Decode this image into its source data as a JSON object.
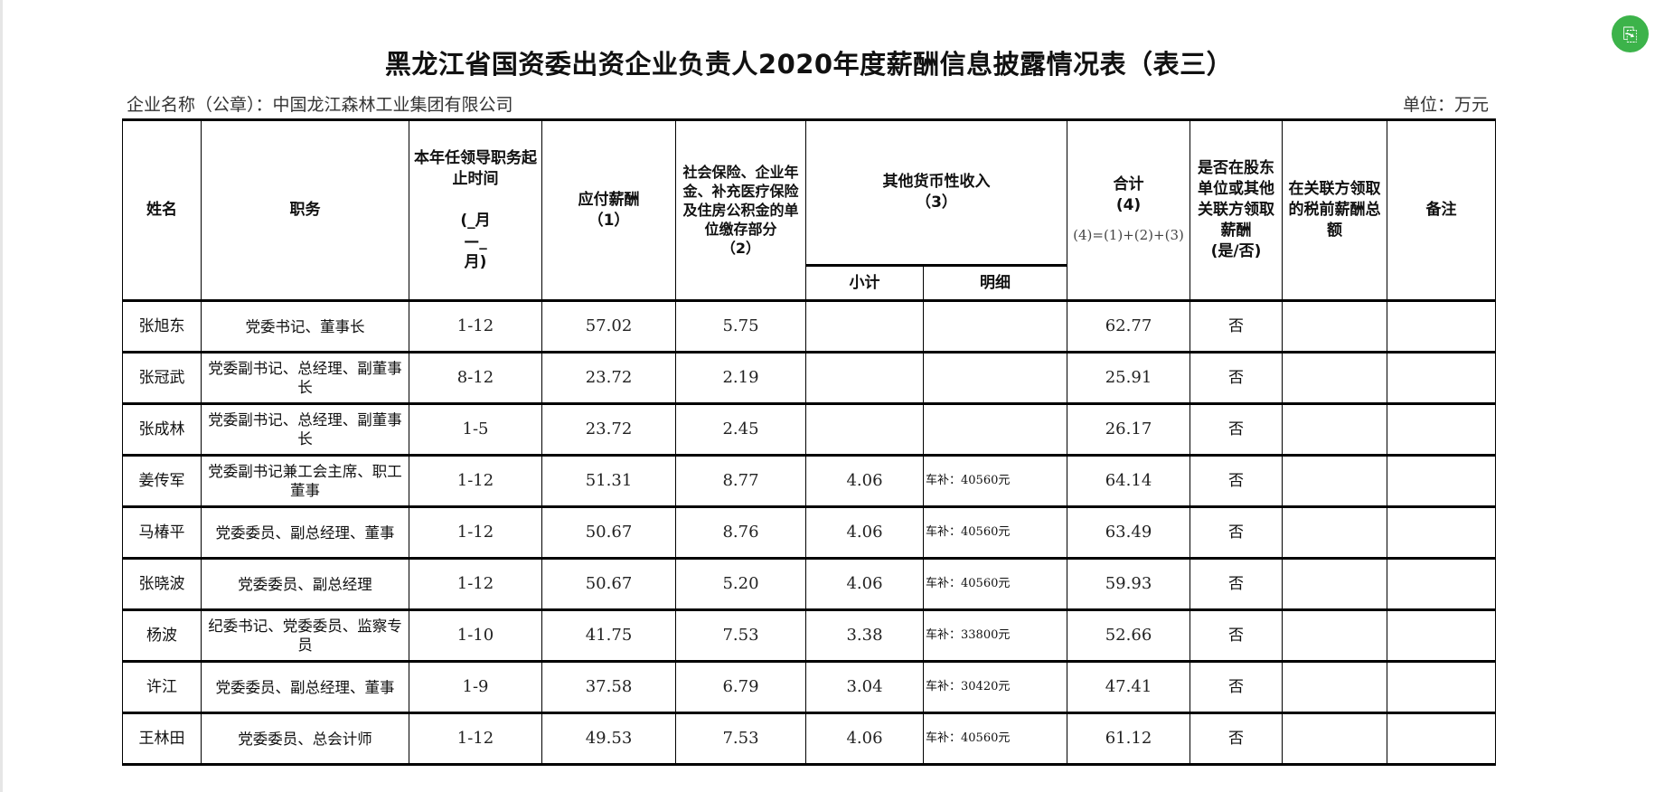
{
  "title": "黑龙江省国资委出资企业负责人2020年度薪酬信息披露情况表（表三）",
  "company": "企业名称（公章）：中国龙江森林工业集团有限公司",
  "unit": "单位：万元",
  "badge_icon": "document-share-icon",
  "accent_color": "#3cb34a",
  "headers": {
    "name": "姓名",
    "position": "职务",
    "term": "本年任领导职务起止时间",
    "term_format": "(_月—_月)",
    "salary": "应付薪酬",
    "salary_no": "（1）",
    "insurance": "社会保险、企业年金、补充医疗保险及住房公积金的单位缴存部分",
    "insurance_no": "（2）",
    "other": "其他货币性收入",
    "other_no": "（3）",
    "subtotal": "小计",
    "detail": "明细",
    "total": "合计",
    "total_no": "(4)",
    "total_formula": "(4)=(1)+(2)+(3)",
    "other_unit": "是否在股东单位或其他关联方领取薪酬",
    "other_unit_yn": "(是/否)",
    "pretax": "在关联方领取的税前薪酬总额",
    "remarks": "备注"
  },
  "rows": [
    {
      "name": "张旭东",
      "position": "党委书记、董事长",
      "term": "1-12",
      "salary": "57.02",
      "insurance": "5.75",
      "subtotal": "",
      "detail": "",
      "total": "62.77",
      "other_unit": "否",
      "pretax": "",
      "remarks": ""
    },
    {
      "name": "张冠武",
      "position": "党委副书记、总经理、副董事长",
      "term": "8-12",
      "salary": "23.72",
      "insurance": "2.19",
      "subtotal": "",
      "detail": "",
      "total": "25.91",
      "other_unit": "否",
      "pretax": "",
      "remarks": ""
    },
    {
      "name": "张成林",
      "position": "党委副书记、总经理、副董事长",
      "term": "1-5",
      "salary": "23.72",
      "insurance": "2.45",
      "subtotal": "",
      "detail": "",
      "total": "26.17",
      "other_unit": "否",
      "pretax": "",
      "remarks": ""
    },
    {
      "name": "姜传军",
      "position": "党委副书记兼工会主席、职工董事",
      "term": "1-12",
      "salary": "51.31",
      "insurance": "8.77",
      "subtotal": "4.06",
      "detail": "车补：40560元",
      "total": "64.14",
      "other_unit": "否",
      "pretax": "",
      "remarks": ""
    },
    {
      "name": "马椿平",
      "position": "党委委员、副总经理、董事",
      "term": "1-12",
      "salary": "50.67",
      "insurance": "8.76",
      "subtotal": "4.06",
      "detail": "车补：40560元",
      "total": "63.49",
      "other_unit": "否",
      "pretax": "",
      "remarks": ""
    },
    {
      "name": "张晓波",
      "position": "党委委员、副总经理",
      "term": "1-12",
      "salary": "50.67",
      "insurance": "5.20",
      "subtotal": "4.06",
      "detail": "车补：40560元",
      "total": "59.93",
      "other_unit": "否",
      "pretax": "",
      "remarks": ""
    },
    {
      "name": "杨波",
      "position": "纪委书记、党委委员、监察专员",
      "term": "1-10",
      "salary": "41.75",
      "insurance": "7.53",
      "subtotal": "3.38",
      "detail": "车补：33800元",
      "total": "52.66",
      "other_unit": "否",
      "pretax": "",
      "remarks": ""
    },
    {
      "name": "许江",
      "position": "党委委员、副总经理、董事",
      "term": "1-9",
      "salary": "37.58",
      "insurance": "6.79",
      "subtotal": "3.04",
      "detail": "车补：30420元",
      "total": "47.41",
      "other_unit": "否",
      "pretax": "",
      "remarks": ""
    },
    {
      "name": "王林田",
      "position": "党委委员、总会计师",
      "term": "1-12",
      "salary": "49.53",
      "insurance": "7.53",
      "subtotal": "4.06",
      "detail": "车补：40560元",
      "total": "61.12",
      "other_unit": "否",
      "pretax": "",
      "remarks": ""
    }
  ]
}
